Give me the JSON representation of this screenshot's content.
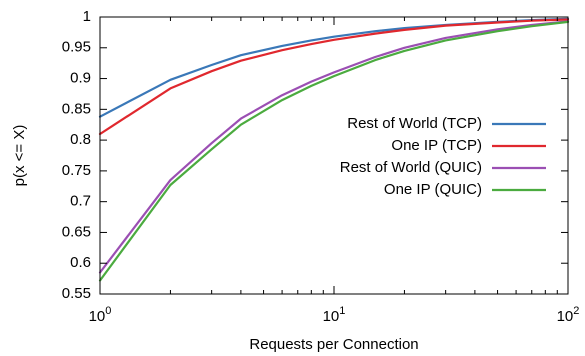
{
  "chart_data": {
    "type": "line",
    "title": "",
    "xlabel": "Requests per Connection",
    "ylabel": "p(x <= X)",
    "xscale": "log",
    "xlim": [
      1,
      100
    ],
    "ylim": [
      0.55,
      1
    ],
    "grid": false,
    "legend_position": "right",
    "x_ticks": [
      {
        "base": "10",
        "exp": "0"
      },
      {
        "base": "10",
        "exp": "1"
      },
      {
        "base": "10",
        "exp": "2"
      }
    ],
    "y_ticks": [
      "0.55",
      "0.6",
      "0.65",
      "0.7",
      "0.75",
      "0.8",
      "0.85",
      "0.9",
      "0.95",
      "1"
    ],
    "series": [
      {
        "name": "Rest of World (TCP)",
        "color": "#3a78b8",
        "x": [
          1,
          2,
          3,
          4,
          6,
          8,
          10,
          15,
          20,
          30,
          50,
          70,
          100
        ],
        "y": [
          0.838,
          0.898,
          0.922,
          0.938,
          0.953,
          0.962,
          0.968,
          0.977,
          0.982,
          0.987,
          0.992,
          0.995,
          0.997
        ]
      },
      {
        "name": "One IP (TCP)",
        "color": "#e0282e",
        "x": [
          1,
          2,
          3,
          4,
          6,
          8,
          10,
          15,
          20,
          30,
          50,
          70,
          100
        ],
        "y": [
          0.81,
          0.884,
          0.912,
          0.929,
          0.946,
          0.956,
          0.963,
          0.973,
          0.979,
          0.986,
          0.991,
          0.994,
          0.996
        ]
      },
      {
        "name": "Rest of World (QUIC)",
        "color": "#9b4fb3",
        "x": [
          1,
          2,
          3,
          4,
          6,
          8,
          10,
          15,
          20,
          30,
          50,
          70,
          100
        ],
        "y": [
          0.585,
          0.735,
          0.795,
          0.835,
          0.873,
          0.895,
          0.91,
          0.935,
          0.95,
          0.966,
          0.98,
          0.987,
          0.993
        ]
      },
      {
        "name": "One IP (QUIC)",
        "color": "#4bab3f",
        "x": [
          1,
          2,
          3,
          4,
          6,
          8,
          10,
          15,
          20,
          30,
          50,
          70,
          100
        ],
        "y": [
          0.572,
          0.727,
          0.785,
          0.825,
          0.865,
          0.888,
          0.904,
          0.93,
          0.945,
          0.962,
          0.977,
          0.985,
          0.992
        ]
      }
    ]
  }
}
